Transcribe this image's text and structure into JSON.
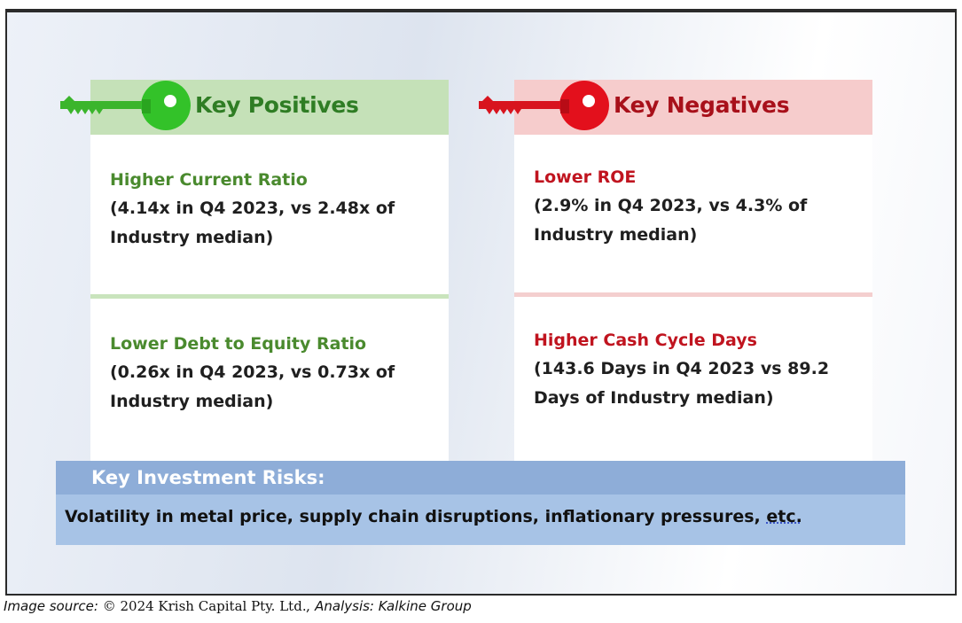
{
  "positives": {
    "title": "Key Positives",
    "color": "#3f8a2e",
    "header_bg": "#c5e1b8",
    "key_color": "#34c02a",
    "items": [
      {
        "title": "Higher Current Ratio",
        "detail": "(4.14x in Q4 2023, vs 2.48x of Industry median)"
      },
      {
        "title": "Lower Debt to Equity Ratio",
        "detail": "(0.26x in Q4 2023, vs 0.73x of Industry median)"
      }
    ]
  },
  "negatives": {
    "title": "Key Negatives",
    "color": "#b0121b",
    "header_bg": "#f6cccc",
    "key_color": "#e0101c",
    "items": [
      {
        "title": "Lower ROE",
        "detail": "(2.9% in Q4 2023, vs 4.3% of Industry median)"
      },
      {
        "title": "Higher Cash Cycle Days",
        "detail": "(143.6 Days in Q4 2023 vs 89.2 Days of Industry median)"
      }
    ]
  },
  "risks": {
    "title": "Key Investment Risks:",
    "text": "Volatility in metal price, supply chain disruptions, inflationary pressures, ",
    "etc": "etc."
  },
  "caption": {
    "prefix": "Image source: ",
    "source": "© 2024 Krish Capital Pty. Ltd.",
    "analysis": ", Analysis: Kalkine Group"
  }
}
